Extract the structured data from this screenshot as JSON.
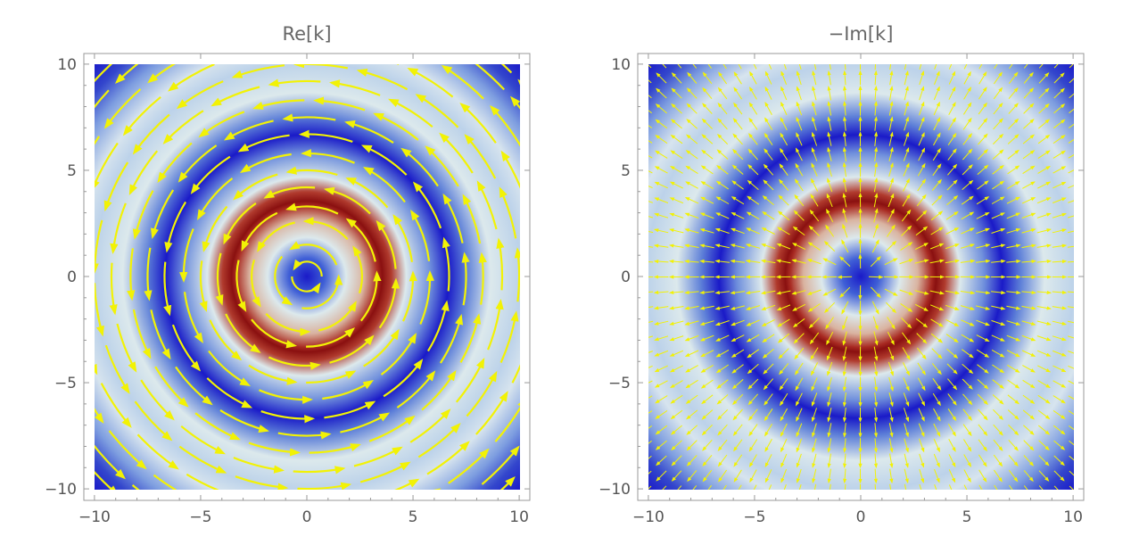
{
  "chart_data": [
    {
      "type": "heatmap",
      "title": "Re[k]",
      "overlay": "stream",
      "field_direction": "azimuthal",
      "xlim": [
        -10.5,
        10.5
      ],
      "ylim": [
        -10.5,
        10.5
      ],
      "x_ticks": [
        -10,
        -5,
        0,
        5,
        10
      ],
      "y_ticks": [
        -10,
        -5,
        0,
        5,
        10
      ],
      "x_tick_labels": [
        "−10",
        "−5",
        "0",
        "5",
        "10"
      ],
      "y_tick_labels": [
        "−10",
        "−5",
        "0",
        "5",
        "10"
      ],
      "color_function": "rainbow-blue-to-red",
      "intensity_peak_radii": [
        3.5,
        10.8
      ],
      "intensity_period": 7.3,
      "stream_radii": [
        0.7,
        1.5,
        2.6,
        3.3,
        4.2,
        5.0,
        5.8,
        6.7,
        7.5,
        8.3,
        9.2,
        10.0,
        10.9,
        11.8,
        12.8,
        13.6
      ],
      "overlay_color": "#f2f205",
      "colors": {
        "low": "#1a1ac8",
        "mid": "#dce9ec",
        "high": "#8a1010"
      }
    },
    {
      "type": "heatmap",
      "title": "−Im[k]",
      "overlay": "vector",
      "field_direction": "radial",
      "xlim": [
        -10.5,
        10.5
      ],
      "ylim": [
        -10.5,
        10.5
      ],
      "x_ticks": [
        -10,
        -5,
        0,
        5,
        10
      ],
      "y_ticks": [
        -10,
        -5,
        0,
        5,
        10
      ],
      "x_tick_labels": [
        "−10",
        "−5",
        "0",
        "5",
        "10"
      ],
      "y_tick_labels": [
        "−10",
        "−5",
        "0",
        "5",
        "10"
      ],
      "color_function": "rainbow-blue-to-red",
      "intensity_peak_radii": [
        3.5,
        10.8
      ],
      "intensity_period": 7.3,
      "vector_grid_step": 0.72,
      "overlay_color": "#f2f205",
      "colors": {
        "low": "#1a1ac8",
        "mid": "#dce9ec",
        "high": "#8a1010"
      }
    }
  ]
}
